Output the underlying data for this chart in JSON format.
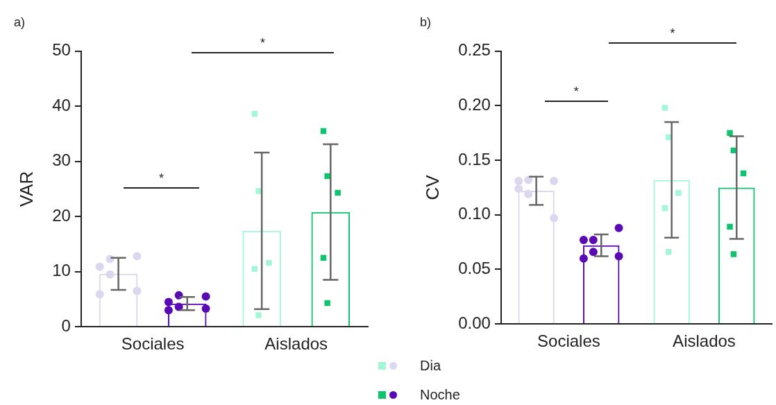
{
  "chart_data": [
    {
      "type": "bar",
      "title": "a)",
      "ylabel": "VAR",
      "categories": [
        "Sociales",
        "Aislados"
      ],
      "ylim": [
        0,
        50
      ],
      "yticks": [
        0,
        10,
        20,
        30,
        40,
        50
      ],
      "legend": "bottom right",
      "annotations": [
        "*",
        "*"
      ],
      "series": [
        {
          "name": "Dia",
          "colors": [
            "#dcd6ef",
            "#a3f7d6"
          ],
          "values": [
            9.6,
            17.4
          ],
          "errors": [
            2.9,
            14.2
          ]
        },
        {
          "name": "Noche",
          "colors": [
            "#5a0ab4",
            "#0ec46e"
          ],
          "values": [
            4.2,
            20.8
          ],
          "errors": [
            1.2,
            12.3
          ]
        },
        {
          "type": "scatter",
          "marker": "circle",
          "color": "#dcd6ef",
          "x": [
            "Sociales",
            "Sociales",
            "Sociales",
            "Sociales",
            "Sociales",
            "Sociales"
          ],
          "values": [
            10.9,
            12.3,
            12.8,
            5.9,
            9.5,
            6.5
          ]
        },
        {
          "type": "scatter",
          "marker": "circle",
          "color": "#5a0ab4",
          "x": [
            "Sociales",
            "Sociales",
            "Sociales",
            "Sociales",
            "Sociales",
            "Sociales"
          ],
          "values": [
            4.5,
            5.7,
            5.5,
            3.0,
            3.6,
            3.3
          ]
        },
        {
          "type": "scatter",
          "marker": "square",
          "color": "#a3f7d6",
          "x": [
            "Aislados",
            "Aislados",
            "Aislados",
            "Aislados",
            "Aislados"
          ],
          "values": [
            38.6,
            24.6,
            11.6,
            10.5,
            2.1
          ]
        },
        {
          "type": "scatter",
          "marker": "square",
          "color": "#0ec46e",
          "x": [
            "Aislados",
            "Aislados",
            "Aislados",
            "Aislados",
            "Aislados"
          ],
          "values": [
            35.5,
            27.3,
            24.3,
            12.5,
            4.3
          ]
        }
      ]
    },
    {
      "type": "bar",
      "title": "b)",
      "ylabel": "CV",
      "categories": [
        "Sociales",
        "Aislados"
      ],
      "ylim": [
        0,
        0.25
      ],
      "yticks": [
        {
          "value": 0,
          "label": "0.00"
        },
        {
          "value": 0.05,
          "label": "0.05"
        },
        {
          "value": 0.1,
          "label": "0.10"
        },
        {
          "value": 0.15,
          "label": "0.15"
        },
        {
          "value": 0.2,
          "label": "0.20"
        },
        {
          "value": 0.25,
          "label": "0.25"
        }
      ],
      "annotations": [
        "*",
        "*"
      ],
      "series": [
        {
          "name": "Dia",
          "colors": [
            "#dcd6ef",
            "#a3f7d6"
          ],
          "values": [
            0.122,
            0.132
          ],
          "errors": [
            0.013,
            0.053
          ]
        },
        {
          "name": "Noche",
          "colors": [
            "#5a0ab4",
            "#0ec46e"
          ],
          "values": [
            0.072,
            0.125
          ],
          "errors": [
            0.01,
            0.047
          ]
        },
        {
          "type": "scatter",
          "marker": "circle",
          "color": "#dcd6ef",
          "x": [
            "Sociales",
            "Sociales",
            "Sociales",
            "Sociales",
            "Sociales",
            "Sociales"
          ],
          "values": [
            0.131,
            0.132,
            0.131,
            0.124,
            0.119,
            0.097
          ]
        },
        {
          "type": "scatter",
          "marker": "circle",
          "color": "#5a0ab4",
          "x": [
            "Sociales",
            "Sociales",
            "Sociales",
            "Sociales",
            "Sociales",
            "Sociales"
          ],
          "values": [
            0.077,
            0.066,
            0.088,
            0.06,
            0.077,
            0.062
          ]
        },
        {
          "type": "scatter",
          "marker": "square",
          "color": "#a3f7d6",
          "x": [
            "Aislados",
            "Aislados",
            "Aislados",
            "Aislados",
            "Aislados"
          ],
          "values": [
            0.198,
            0.171,
            0.12,
            0.106,
            0.066
          ]
        },
        {
          "type": "scatter",
          "marker": "square",
          "color": "#0ec46e",
          "x": [
            "Aislados",
            "Aislados",
            "Aislados",
            "Aislados",
            "Aislados"
          ],
          "values": [
            0.175,
            0.159,
            0.138,
            0.089,
            0.064
          ]
        }
      ]
    }
  ]
}
